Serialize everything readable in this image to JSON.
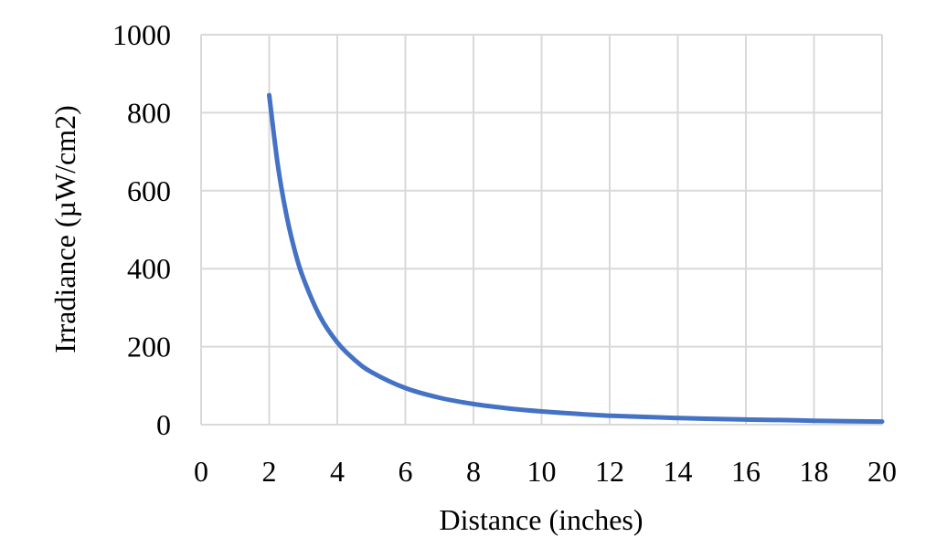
{
  "chart_data": {
    "type": "line",
    "title": "",
    "xlabel": "Distance (inches)",
    "ylabel": "Irradiance (µW/cm2)",
    "xlim": [
      0,
      20
    ],
    "ylim": [
      0,
      1000
    ],
    "x_ticks": [
      0,
      2,
      4,
      6,
      8,
      10,
      12,
      14,
      16,
      18,
      20
    ],
    "y_ticks": [
      0,
      200,
      400,
      600,
      800,
      1000
    ],
    "grid": true,
    "legend": "none",
    "line_color": "#4472C4",
    "grid_color": "#D9D9D9",
    "series": [
      {
        "x": [
          2,
          2.25,
          2.5,
          2.75,
          3,
          3.5,
          4,
          4.5,
          5,
          6,
          7,
          8,
          9,
          10,
          11,
          12,
          13,
          14,
          15,
          16,
          17,
          18,
          19,
          20
        ],
        "values": [
          845,
          668,
          541,
          447,
          376,
          276,
          211,
          167,
          135,
          94,
          69,
          53,
          42,
          34,
          28,
          23,
          20,
          17,
          15,
          13,
          12,
          10,
          9,
          8
        ]
      }
    ]
  }
}
